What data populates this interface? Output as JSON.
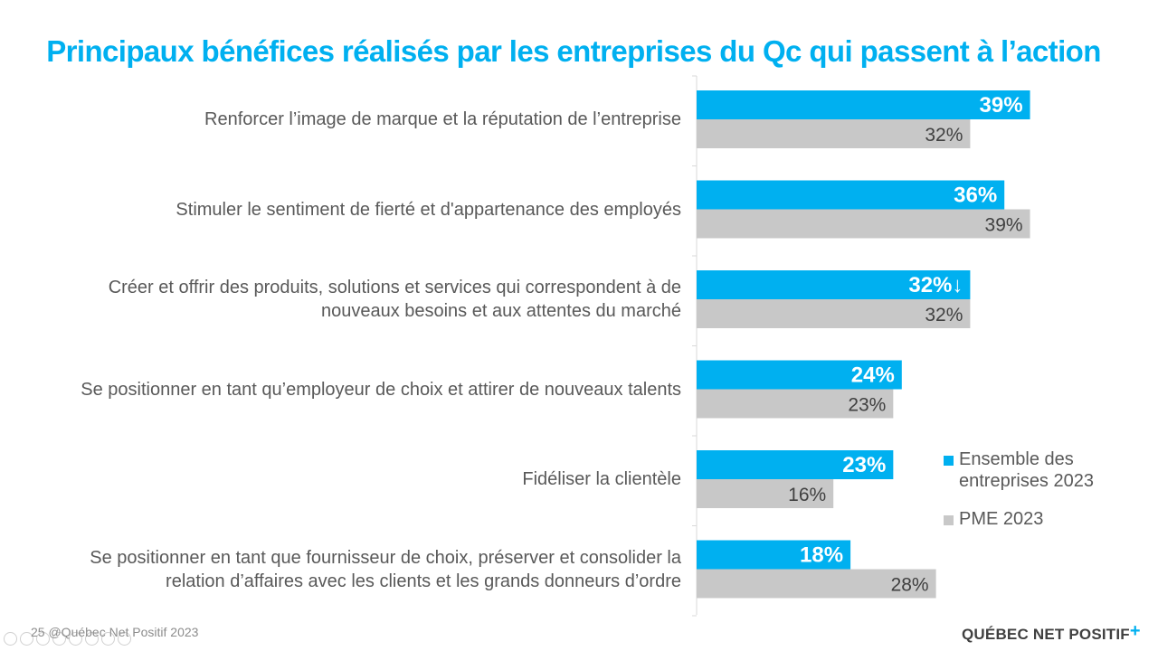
{
  "title": "Principaux bénéfices réalisés par les entreprises du Qc qui passent à l’action",
  "colors": {
    "accent": "#00B0F0",
    "grey_series": "#C8C8C8",
    "text": "#595959"
  },
  "chart_data": {
    "type": "bar",
    "orientation": "horizontal",
    "categories": [
      "Renforcer l’image de marque et la réputation de l’entreprise",
      "Stimuler le sentiment de fierté et d'appartenance des employés",
      "Créer et offrir des produits, solutions et services qui correspondent à de nouveaux besoins et aux attentes du marché",
      "Se positionner en tant qu’employeur de choix et attirer de nouveaux talents",
      "Fidéliser la clientèle",
      "Se positionner en tant que fournisseur de choix, préserver et consolider la relation d’affaires avec les clients et les grands donneurs d’ordre"
    ],
    "series": [
      {
        "name": "Ensemble des entreprises 2023",
        "color": "#00B0F0",
        "values": [
          39,
          36,
          32,
          24,
          23,
          18
        ],
        "labels": [
          "39%",
          "36%",
          "32%↓",
          "24%",
          "23%",
          "18%"
        ]
      },
      {
        "name": "PME 2023",
        "color": "#C8C8C8",
        "values": [
          32,
          39,
          32,
          23,
          16,
          28
        ],
        "labels": [
          "32%",
          "39%",
          "32%",
          "23%",
          "16%",
          "28%"
        ]
      }
    ],
    "xlim": [
      0,
      55
    ],
    "legend_position": "bottom-right",
    "grid": false
  },
  "footer": {
    "page_number": "25",
    "copyright": "@Québec Net Positif 2023",
    "brand": "QUÉBEC NET POSITIF",
    "brand_mark": "+"
  }
}
